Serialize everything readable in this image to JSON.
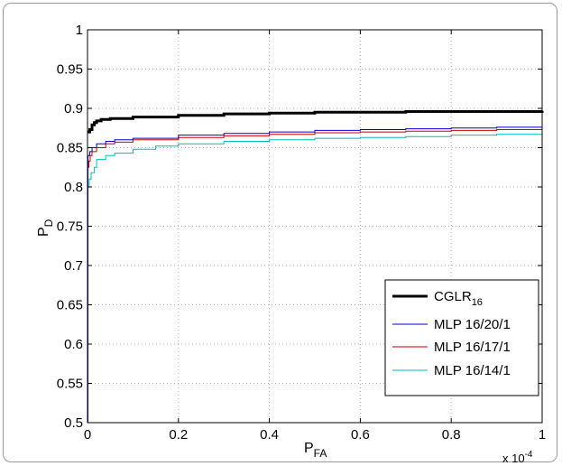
{
  "chart_data": {
    "type": "line",
    "xlabel": "P",
    "xlabel_sub": "FA",
    "ylabel": "P",
    "ylabel_sub": "D",
    "xlim": [
      0,
      1
    ],
    "ylim": [
      0.5,
      1
    ],
    "x_ticks": [
      0,
      0.2,
      0.4,
      0.6,
      0.8,
      1
    ],
    "x_tick_labels": [
      "0",
      "0.2",
      "0.4",
      "0.6",
      "0.8",
      "1"
    ],
    "y_ticks": [
      0.5,
      0.55,
      0.6,
      0.65,
      0.7,
      0.75,
      0.8,
      0.85,
      0.9,
      0.95,
      1
    ],
    "y_tick_labels": [
      "0.5",
      "0.55",
      "0.6",
      "0.65",
      "0.7",
      "0.75",
      "0.8",
      "0.85",
      "0.9",
      "0.95",
      "1"
    ],
    "x_multiplier": "x 10",
    "x_multiplier_exp": "-4",
    "grid": true,
    "legend_position": "bottom-right",
    "series": [
      {
        "name": "CGLR",
        "name_sub": "16",
        "color": "#000000",
        "width": 3,
        "points": [
          [
            0,
            0.87
          ],
          [
            0.005,
            0.873
          ],
          [
            0.01,
            0.879
          ],
          [
            0.015,
            0.882
          ],
          [
            0.02,
            0.884
          ],
          [
            0.03,
            0.886
          ],
          [
            0.05,
            0.887
          ],
          [
            0.1,
            0.889
          ],
          [
            0.2,
            0.891
          ],
          [
            0.3,
            0.893
          ],
          [
            0.4,
            0.894
          ],
          [
            0.5,
            0.895
          ],
          [
            0.6,
            0.895
          ],
          [
            0.7,
            0.896
          ],
          [
            0.8,
            0.896
          ],
          [
            0.9,
            0.896
          ],
          [
            1.0,
            0.897
          ]
        ]
      },
      {
        "name": "MLP 16/20/1",
        "color": "#0000cc",
        "width": 1,
        "points": [
          [
            0,
            0.5
          ],
          [
            0.001,
            0.84
          ],
          [
            0.005,
            0.845
          ],
          [
            0.01,
            0.85
          ],
          [
            0.02,
            0.855
          ],
          [
            0.04,
            0.858
          ],
          [
            0.06,
            0.86
          ],
          [
            0.1,
            0.862
          ],
          [
            0.2,
            0.866
          ],
          [
            0.3,
            0.868
          ],
          [
            0.4,
            0.87
          ],
          [
            0.5,
            0.872
          ],
          [
            0.6,
            0.873
          ],
          [
            0.7,
            0.874
          ],
          [
            0.8,
            0.875
          ],
          [
            0.9,
            0.876
          ],
          [
            1.0,
            0.877
          ]
        ]
      },
      {
        "name": "MLP 16/17/1",
        "color": "#cc0000",
        "width": 1,
        "points": [
          [
            0,
            0.5
          ],
          [
            0.001,
            0.825
          ],
          [
            0.003,
            0.833
          ],
          [
            0.006,
            0.84
          ],
          [
            0.01,
            0.845
          ],
          [
            0.02,
            0.85
          ],
          [
            0.04,
            0.855
          ],
          [
            0.06,
            0.857
          ],
          [
            0.1,
            0.86
          ],
          [
            0.2,
            0.863
          ],
          [
            0.3,
            0.865
          ],
          [
            0.4,
            0.867
          ],
          [
            0.5,
            0.869
          ],
          [
            0.6,
            0.87
          ],
          [
            0.7,
            0.871
          ],
          [
            0.8,
            0.872
          ],
          [
            0.9,
            0.873
          ],
          [
            1.0,
            0.873
          ]
        ]
      },
      {
        "name": "MLP 16/14/1",
        "color": "#00bbbb",
        "width": 1,
        "points": [
          [
            0,
            0.5
          ],
          [
            0.001,
            0.8
          ],
          [
            0.004,
            0.81
          ],
          [
            0.008,
            0.818
          ],
          [
            0.015,
            0.825
          ],
          [
            0.02,
            0.835
          ],
          [
            0.04,
            0.84
          ],
          [
            0.06,
            0.843
          ],
          [
            0.1,
            0.848
          ],
          [
            0.15,
            0.852
          ],
          [
            0.2,
            0.855
          ],
          [
            0.3,
            0.858
          ],
          [
            0.4,
            0.86
          ],
          [
            0.5,
            0.862
          ],
          [
            0.6,
            0.863
          ],
          [
            0.7,
            0.864
          ],
          [
            0.8,
            0.866
          ],
          [
            0.9,
            0.867
          ],
          [
            1.0,
            0.868
          ]
        ]
      }
    ]
  }
}
